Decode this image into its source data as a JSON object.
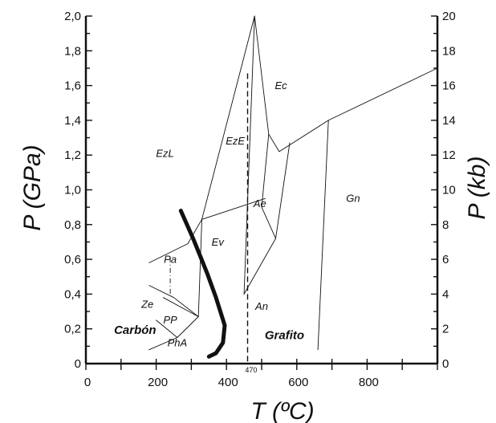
{
  "chart_data": {
    "type": "line",
    "title": "",
    "xlabel": "T (ºC)",
    "ylabel_left": "P (GPa)",
    "ylabel_right": "P (kb)",
    "xlim": [
      0,
      1000
    ],
    "ylim_left": [
      0,
      2.0
    ],
    "ylim_right": [
      0,
      20
    ],
    "x_ticks": [
      "0",
      "200",
      "400",
      "600",
      "800"
    ],
    "y_left_ticks": [
      "0",
      "0,2",
      "0,4",
      "0,6",
      "0,8",
      "1,0",
      "1,2",
      "1,4",
      "1,6",
      "1,8",
      "2,0"
    ],
    "y_right_ticks": [
      "0",
      "2",
      "4",
      "6",
      "8",
      "10",
      "12",
      "14",
      "16",
      "18",
      "20"
    ],
    "grid": false,
    "legend": "none",
    "series": [
      {
        "style": "thin",
        "points": [
          [
            180,
            0.58
          ],
          [
            290,
            0.69
          ],
          [
            330,
            0.83
          ]
        ]
      },
      {
        "style": "thin",
        "points": [
          [
            330,
            0.83
          ],
          [
            510,
            0.95
          ]
        ]
      },
      {
        "style": "thin",
        "points": [
          [
            330,
            0.83
          ],
          [
            480,
            2.0
          ],
          [
            520,
            1.32
          ],
          [
            550,
            1.22
          ],
          [
            690,
            1.4
          ],
          [
            1000,
            1.7
          ]
        ]
      },
      {
        "style": "thin",
        "points": [
          [
            480,
            2.0
          ],
          [
            450,
            0.4
          ]
        ]
      },
      {
        "style": "thin",
        "points": [
          [
            520,
            1.32
          ],
          [
            500,
            0.9
          ],
          [
            540,
            0.72
          ],
          [
            580,
            1.27
          ]
        ]
      },
      {
        "style": "thin",
        "points": [
          [
            450,
            0.4
          ],
          [
            540,
            0.72
          ]
        ]
      },
      {
        "style": "thin",
        "points": [
          [
            330,
            0.83
          ],
          [
            320,
            0.27
          ],
          [
            260,
            0.15
          ],
          [
            180,
            0.08
          ]
        ]
      },
      {
        "style": "thin",
        "points": [
          [
            320,
            0.27
          ],
          [
            250,
            0.38
          ],
          [
            180,
            0.45
          ]
        ]
      },
      {
        "style": "thin",
        "points": [
          [
            320,
            0.27
          ],
          [
            220,
            0.38
          ]
        ]
      },
      {
        "style": "thin",
        "points": [
          [
            260,
            0.15
          ],
          [
            200,
            0.25
          ]
        ]
      },
      {
        "style": "thin",
        "points": [
          [
            690,
            1.4
          ],
          [
            660,
            0.08
          ]
        ]
      },
      {
        "style": "dashdot",
        "points": [
          [
            240,
            0.61
          ],
          [
            240,
            0.39
          ]
        ]
      },
      {
        "style": "dashed",
        "points": [
          [
            460,
            1.67
          ],
          [
            460,
            0.0
          ]
        ]
      },
      {
        "style": "thick",
        "points": [
          [
            270,
            0.88
          ],
          [
            305,
            0.72
          ],
          [
            345,
            0.52
          ],
          [
            370,
            0.38
          ],
          [
            395,
            0.22
          ],
          [
            390,
            0.12
          ],
          [
            370,
            0.06
          ],
          [
            350,
            0.04
          ]
        ]
      }
    ],
    "annotations": [
      {
        "text": "Ec",
        "x": 555,
        "y": 1.58
      },
      {
        "text": "EzE",
        "x": 425,
        "y": 1.26
      },
      {
        "text": "EzL",
        "x": 225,
        "y": 1.19
      },
      {
        "text": "Ae",
        "x": 495,
        "y": 0.9
      },
      {
        "text": "Gn",
        "x": 760,
        "y": 0.93
      },
      {
        "text": "Ev",
        "x": 375,
        "y": 0.68
      },
      {
        "text": "Pa",
        "x": 240,
        "y": 0.58
      },
      {
        "text": "Ze",
        "x": 175,
        "y": 0.32
      },
      {
        "text": "An",
        "x": 500,
        "y": 0.31
      },
      {
        "text": "PP",
        "x": 240,
        "y": 0.23
      },
      {
        "text": "PhA",
        "x": 260,
        "y": 0.1
      },
      {
        "text": "Carbón",
        "x": 140,
        "y": 0.17,
        "bold": true
      },
      {
        "text": "Grafito",
        "x": 565,
        "y": 0.14,
        "bold": true
      },
      {
        "text": "470",
        "x": 470,
        "y": -0.05,
        "small": true
      }
    ]
  }
}
